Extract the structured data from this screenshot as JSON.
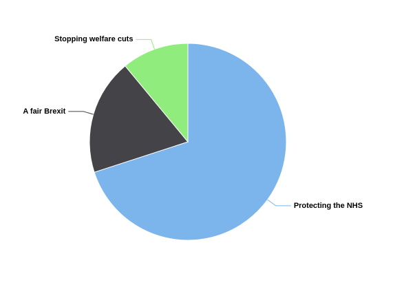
{
  "chart_data": {
    "type": "pie",
    "categories": [
      "Protecting the NHS",
      "A fair Brexit",
      "Stopping welfare cuts"
    ],
    "values": [
      70,
      19,
      11
    ],
    "colors": [
      "#7cb5ec",
      "#434348",
      "#90ed7d"
    ]
  }
}
